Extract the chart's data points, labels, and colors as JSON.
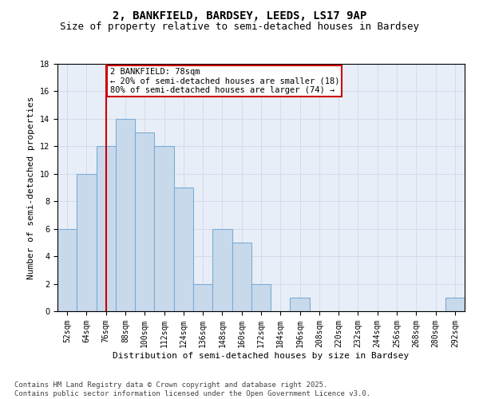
{
  "title1": "2, BANKFIELD, BARDSEY, LEEDS, LS17 9AP",
  "title2": "Size of property relative to semi-detached houses in Bardsey",
  "xlabel": "Distribution of semi-detached houses by size in Bardsey",
  "ylabel": "Number of semi-detached properties",
  "categories": [
    "52sqm",
    "64sqm",
    "76sqm",
    "88sqm",
    "100sqm",
    "112sqm",
    "124sqm",
    "136sqm",
    "148sqm",
    "160sqm",
    "172sqm",
    "184sqm",
    "196sqm",
    "208sqm",
    "220sqm",
    "232sqm",
    "244sqm",
    "256sqm",
    "268sqm",
    "280sqm",
    "292sqm"
  ],
  "values": [
    6,
    10,
    12,
    14,
    13,
    12,
    9,
    2,
    6,
    5,
    2,
    0,
    1,
    0,
    0,
    0,
    0,
    0,
    0,
    0,
    1
  ],
  "bar_color": "#c9d9ec",
  "bar_edge_color": "#7aadd4",
  "red_line_index": 2,
  "annotation_text": "2 BANKFIELD: 78sqm\n← 20% of semi-detached houses are smaller (18)\n80% of semi-detached houses are larger (74) →",
  "annotation_box_color": "#ffffff",
  "annotation_box_edge": "#cc0000",
  "ylim": [
    0,
    18
  ],
  "yticks": [
    0,
    2,
    4,
    6,
    8,
    10,
    12,
    14,
    16,
    18
  ],
  "grid_color": "#d0d8e8",
  "background_color": "#e8eef7",
  "footer_text": "Contains HM Land Registry data © Crown copyright and database right 2025.\nContains public sector information licensed under the Open Government Licence v3.0.",
  "title_fontsize": 10,
  "subtitle_fontsize": 9,
  "tick_fontsize": 7,
  "axis_label_fontsize": 8,
  "annotation_fontsize": 7.5,
  "footer_fontsize": 6.5
}
